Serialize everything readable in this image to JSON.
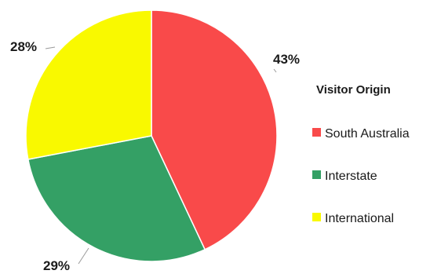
{
  "chart_data": {
    "type": "pie",
    "legend_title": "Visitor Origin",
    "legend_position": "right",
    "slices": [
      {
        "label": "South Australia",
        "value": 43,
        "display": "43%",
        "color": "#f94a4a"
      },
      {
        "label": "Interstate",
        "value": 29,
        "display": "29%",
        "color": "#34a065"
      },
      {
        "label": "International",
        "value": 28,
        "display": "28%",
        "color": "#f9f900"
      }
    ]
  }
}
